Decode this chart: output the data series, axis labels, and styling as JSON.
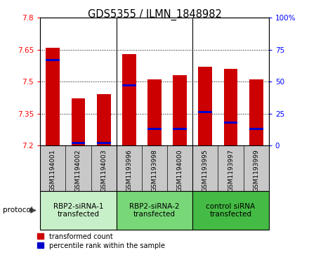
{
  "title": "GDS5355 / ILMN_1848982",
  "samples": [
    "GSM1194001",
    "GSM1194002",
    "GSM1194003",
    "GSM1193996",
    "GSM1193998",
    "GSM1194000",
    "GSM1193995",
    "GSM1193997",
    "GSM1193999"
  ],
  "red_values": [
    7.66,
    7.42,
    7.44,
    7.63,
    7.51,
    7.53,
    7.57,
    7.56,
    7.51
  ],
  "blue_values": [
    67,
    2,
    2,
    47,
    13,
    13,
    26,
    18,
    13
  ],
  "ylim_left": [
    7.2,
    7.8
  ],
  "ylim_right": [
    0,
    100
  ],
  "yticks_left": [
    7.2,
    7.35,
    7.5,
    7.65,
    7.8
  ],
  "yticks_right": [
    0,
    25,
    50,
    75,
    100
  ],
  "ytick_labels_left": [
    "7.2",
    "7.35",
    "7.5",
    "7.65",
    "7.8"
  ],
  "ytick_labels_right": [
    "0",
    "25",
    "50",
    "75",
    "100%"
  ],
  "groups": [
    {
      "label": "RBP2-siRNA-1\ntransfected",
      "indices": [
        0,
        1,
        2
      ],
      "color": "#c8f0c8"
    },
    {
      "label": "RBP2-siRNA-2\ntransfected",
      "indices": [
        3,
        4,
        5
      ],
      "color": "#78d878"
    },
    {
      "label": "control siRNA\ntransfected",
      "indices": [
        6,
        7,
        8
      ],
      "color": "#44bb44"
    }
  ],
  "bar_width": 0.55,
  "bar_bottom": 7.2,
  "red_color": "#cc0000",
  "blue_color": "#0000cc",
  "sample_bg_color": "#c8c8c8",
  "plot_bg": "#ffffff",
  "legend_red": "transformed count",
  "legend_blue": "percentile rank within the sample",
  "protocol_label": "protocol",
  "title_fontsize": 10.5,
  "tick_fontsize": 7.5,
  "sample_fontsize": 6.5,
  "group_fontsize": 7.5,
  "legend_fontsize": 7
}
